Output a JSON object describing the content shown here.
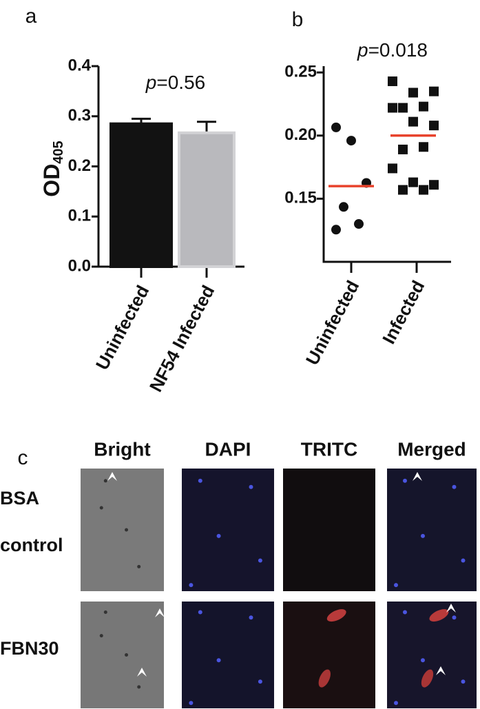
{
  "chart_data": [
    {
      "type": "bar",
      "panel_label": "a",
      "ylabel": {
        "text": "OD",
        "subscript": "405"
      },
      "annotation": {
        "symbol": "p",
        "text": "=0.56"
      },
      "categories": [
        "Uninfected",
        "NF54 Infected"
      ],
      "values": [
        0.285,
        0.267
      ],
      "errors": [
        0.01,
        0.022
      ],
      "colors": [
        "#121212",
        "#b9b9bd"
      ],
      "ylim": [
        0,
        0.4
      ],
      "yticks": [
        {
          "value": 0,
          "label": "0.0"
        },
        0.1,
        0.2,
        0.3,
        0.4
      ]
    },
    {
      "type": "scatter",
      "panel_label": "b",
      "annotation": {
        "symbol": "p",
        "text": "=0.018"
      },
      "categories": [
        "Uninfected",
        "Infected"
      ],
      "groups": [
        {
          "values": [
            0.2065,
            0.196,
            0.1625,
            0.1435,
            0.13,
            0.1255
          ],
          "mean": 0.16
        },
        {
          "values": [
            0.243,
            0.234,
            0.235,
            0.222,
            0.223,
            0.222,
            0.211,
            0.208,
            0.189,
            0.191,
            0.174,
            0.163,
            0.161,
            0.157,
            0.157
          ],
          "mean": 0.2
        }
      ],
      "point_color": "#111111",
      "mean_color": "#e8432c",
      "ylim": [
        0.1,
        0.255
      ],
      "yticks": [
        0.15,
        {
          "value": 0.2,
          "label": "0.20"
        },
        0.25
      ]
    }
  ],
  "panel_c": {
    "label": "c",
    "columns": [
      "Bright",
      "DAPI",
      "TRITC",
      "Merged"
    ],
    "rows": [
      [
        "BSA",
        "control"
      ],
      [
        "FBN30"
      ]
    ]
  }
}
